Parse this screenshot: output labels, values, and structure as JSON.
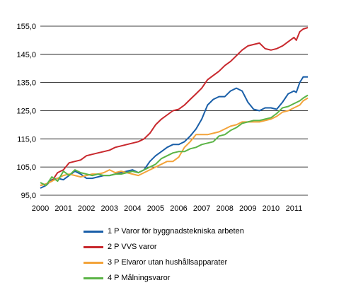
{
  "chart_data": {
    "type": "line",
    "ylim": [
      95,
      157
    ],
    "xlim": [
      2000,
      2011.6
    ],
    "y_ticks": [
      "95,0",
      "105,0",
      "115,0",
      "125,0",
      "135,0",
      "145,0",
      "155,0"
    ],
    "y_tick_values": [
      95,
      105,
      115,
      125,
      135,
      145,
      155
    ],
    "x_ticks": [
      "2000",
      "2001",
      "2002",
      "2003",
      "2004",
      "2005",
      "2006",
      "2007",
      "2008",
      "2009",
      "2010",
      "2011"
    ],
    "grid": "horizontal",
    "legend": "bottom",
    "series": [
      {
        "name": "1 P Varor för byggnadstekniska arbeten",
        "color": "#1a5fa8",
        "points": [
          [
            2000,
            97.5
          ],
          [
            2000.25,
            98.5
          ],
          [
            2000.5,
            100.5
          ],
          [
            2000.75,
            101
          ],
          [
            2001,
            100.5
          ],
          [
            2001.25,
            102
          ],
          [
            2001.5,
            103.5
          ],
          [
            2001.75,
            102.5
          ],
          [
            2002,
            101
          ],
          [
            2002.25,
            101
          ],
          [
            2002.5,
            101.5
          ],
          [
            2002.75,
            102
          ],
          [
            2003,
            102
          ],
          [
            2003.25,
            102.5
          ],
          [
            2003.5,
            103
          ],
          [
            2003.75,
            103.5
          ],
          [
            2004,
            104
          ],
          [
            2004.25,
            103
          ],
          [
            2004.5,
            104
          ],
          [
            2004.75,
            107
          ],
          [
            2005,
            109
          ],
          [
            2005.25,
            110.5
          ],
          [
            2005.5,
            112
          ],
          [
            2005.75,
            113
          ],
          [
            2006,
            113
          ],
          [
            2006.25,
            114
          ],
          [
            2006.5,
            116
          ],
          [
            2006.75,
            118.5
          ],
          [
            2007,
            122
          ],
          [
            2007.25,
            127
          ],
          [
            2007.5,
            129
          ],
          [
            2007.75,
            130
          ],
          [
            2008,
            130
          ],
          [
            2008.25,
            132
          ],
          [
            2008.5,
            133
          ],
          [
            2008.75,
            132
          ],
          [
            2009,
            128
          ],
          [
            2009.25,
            125.5
          ],
          [
            2009.5,
            125
          ],
          [
            2009.75,
            126
          ],
          [
            2010,
            126
          ],
          [
            2010.25,
            125.5
          ],
          [
            2010.5,
            128
          ],
          [
            2010.75,
            131
          ],
          [
            2011,
            132
          ],
          [
            2011.1,
            131.5
          ],
          [
            2011.25,
            135
          ],
          [
            2011.4,
            137
          ],
          [
            2011.6,
            137
          ]
        ]
      },
      {
        "name": "2 P VVS varor",
        "color": "#c8282d",
        "points": [
          [
            2000,
            98.5
          ],
          [
            2000.25,
            99
          ],
          [
            2000.5,
            100
          ],
          [
            2000.75,
            103
          ],
          [
            2001,
            104
          ],
          [
            2001.25,
            106.5
          ],
          [
            2001.5,
            107
          ],
          [
            2001.75,
            107.5
          ],
          [
            2002,
            109
          ],
          [
            2002.25,
            109.5
          ],
          [
            2002.5,
            110
          ],
          [
            2002.75,
            110.5
          ],
          [
            2003,
            111
          ],
          [
            2003.25,
            112
          ],
          [
            2003.5,
            112.5
          ],
          [
            2003.75,
            113
          ],
          [
            2004,
            113.5
          ],
          [
            2004.25,
            114
          ],
          [
            2004.5,
            115
          ],
          [
            2004.75,
            117
          ],
          [
            2005,
            120
          ],
          [
            2005.25,
            122
          ],
          [
            2005.5,
            123.5
          ],
          [
            2005.75,
            125
          ],
          [
            2006,
            125.5
          ],
          [
            2006.25,
            127
          ],
          [
            2006.5,
            129
          ],
          [
            2006.75,
            131
          ],
          [
            2007,
            133
          ],
          [
            2007.25,
            136
          ],
          [
            2007.5,
            137.5
          ],
          [
            2007.75,
            139
          ],
          [
            2008,
            141
          ],
          [
            2008.25,
            142.5
          ],
          [
            2008.5,
            144.5
          ],
          [
            2008.75,
            146.5
          ],
          [
            2009,
            148
          ],
          [
            2009.25,
            148.5
          ],
          [
            2009.5,
            149
          ],
          [
            2009.75,
            147
          ],
          [
            2010,
            146.5
          ],
          [
            2010.25,
            147
          ],
          [
            2010.5,
            148
          ],
          [
            2010.75,
            149.5
          ],
          [
            2011,
            151
          ],
          [
            2011.1,
            150
          ],
          [
            2011.25,
            153
          ],
          [
            2011.4,
            154
          ],
          [
            2011.6,
            154.5
          ]
        ]
      },
      {
        "name": "3 P Elvaror utan hushållsapparater",
        "color": "#f3a33a",
        "points": [
          [
            2000,
            98.5
          ],
          [
            2000.25,
            99
          ],
          [
            2000.5,
            100
          ],
          [
            2000.75,
            101
          ],
          [
            2001,
            102
          ],
          [
            2001.25,
            102.5
          ],
          [
            2001.5,
            102
          ],
          [
            2001.75,
            101.5
          ],
          [
            2002,
            102
          ],
          [
            2002.25,
            102.5
          ],
          [
            2002.5,
            102.5
          ],
          [
            2002.75,
            103
          ],
          [
            2003,
            104
          ],
          [
            2003.25,
            103
          ],
          [
            2003.5,
            103.5
          ],
          [
            2003.75,
            103
          ],
          [
            2004,
            102.5
          ],
          [
            2004.25,
            102
          ],
          [
            2004.5,
            103
          ],
          [
            2004.75,
            104
          ],
          [
            2005,
            105
          ],
          [
            2005.25,
            106
          ],
          [
            2005.5,
            107
          ],
          [
            2005.75,
            107
          ],
          [
            2006,
            108.5
          ],
          [
            2006.25,
            112
          ],
          [
            2006.5,
            114
          ],
          [
            2006.75,
            116.5
          ],
          [
            2007,
            116.5
          ],
          [
            2007.25,
            116.5
          ],
          [
            2007.5,
            117
          ],
          [
            2007.75,
            117.5
          ],
          [
            2008,
            118.5
          ],
          [
            2008.25,
            119.5
          ],
          [
            2008.5,
            120
          ],
          [
            2008.75,
            121
          ],
          [
            2009,
            121
          ],
          [
            2009.25,
            121
          ],
          [
            2009.5,
            121
          ],
          [
            2009.75,
            121.5
          ],
          [
            2010,
            122
          ],
          [
            2010.25,
            123
          ],
          [
            2010.5,
            124.5
          ],
          [
            2010.75,
            125
          ],
          [
            2011,
            126
          ],
          [
            2011.25,
            127
          ],
          [
            2011.4,
            128.5
          ],
          [
            2011.6,
            129.5
          ]
        ]
      },
      {
        "name": "4 P Målningsvaror",
        "color": "#5bb446",
        "points": [
          [
            2000,
            99.5
          ],
          [
            2000.25,
            98.5
          ],
          [
            2000.5,
            101.5
          ],
          [
            2000.75,
            100
          ],
          [
            2001,
            103.5
          ],
          [
            2001.25,
            102
          ],
          [
            2001.5,
            104
          ],
          [
            2001.75,
            103
          ],
          [
            2002,
            102.5
          ],
          [
            2002.25,
            102
          ],
          [
            2002.5,
            102.5
          ],
          [
            2002.75,
            102
          ],
          [
            2003,
            102
          ],
          [
            2003.25,
            102.5
          ],
          [
            2003.5,
            102.5
          ],
          [
            2003.75,
            103
          ],
          [
            2004,
            103.5
          ],
          [
            2004.25,
            103
          ],
          [
            2004.5,
            104
          ],
          [
            2004.75,
            105
          ],
          [
            2005,
            106
          ],
          [
            2005.25,
            108
          ],
          [
            2005.5,
            109
          ],
          [
            2005.75,
            110
          ],
          [
            2006,
            110.5
          ],
          [
            2006.25,
            110.5
          ],
          [
            2006.5,
            111.5
          ],
          [
            2006.75,
            112
          ],
          [
            2007,
            113
          ],
          [
            2007.25,
            113.5
          ],
          [
            2007.5,
            114
          ],
          [
            2007.75,
            116
          ],
          [
            2008,
            116.5
          ],
          [
            2008.25,
            118
          ],
          [
            2008.5,
            119
          ],
          [
            2008.75,
            120.5
          ],
          [
            2009,
            121
          ],
          [
            2009.25,
            121.5
          ],
          [
            2009.5,
            121.5
          ],
          [
            2009.75,
            122
          ],
          [
            2010,
            122.5
          ],
          [
            2010.25,
            124
          ],
          [
            2010.5,
            126
          ],
          [
            2010.75,
            126.5
          ],
          [
            2011,
            127.5
          ],
          [
            2011.25,
            128.5
          ],
          [
            2011.4,
            129.5
          ],
          [
            2011.6,
            130.5
          ]
        ]
      }
    ]
  }
}
